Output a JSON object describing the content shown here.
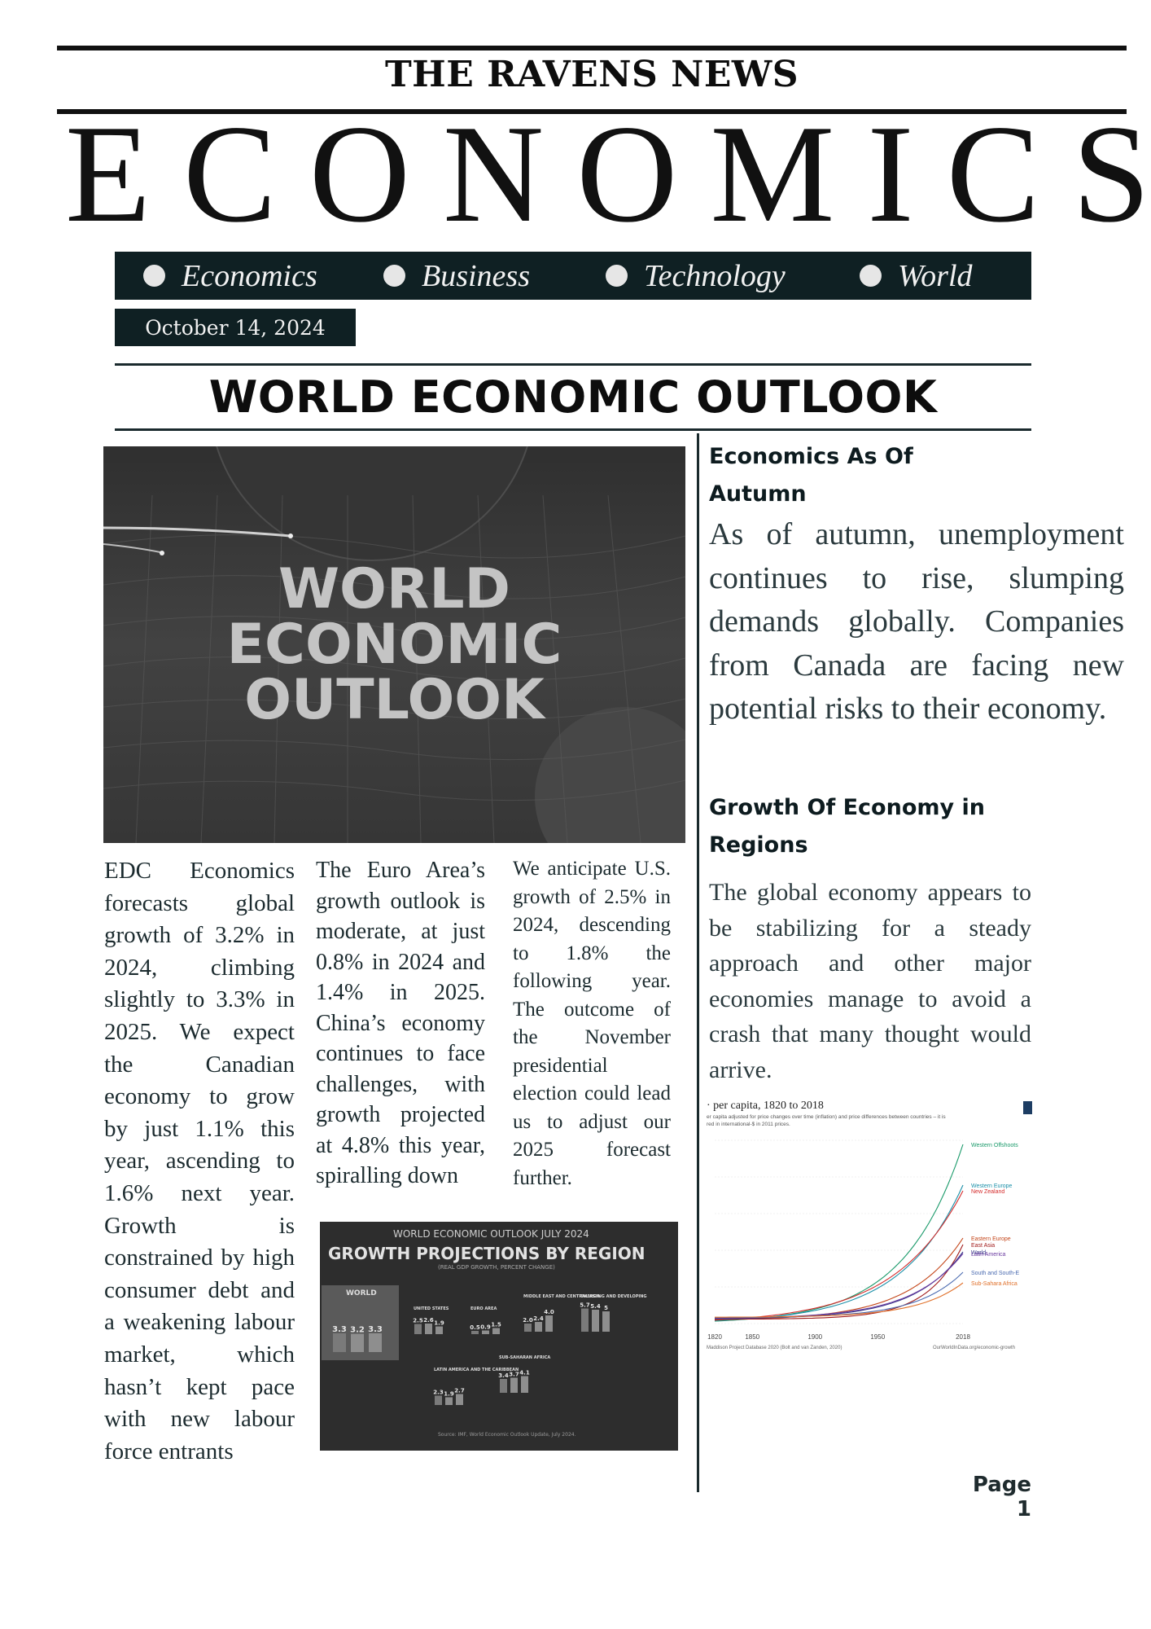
{
  "masthead": {
    "paper_name": "THE RAVENS NEWS",
    "section_title": "ECONOMICS"
  },
  "nav": {
    "items": [
      {
        "label": "Economics"
      },
      {
        "label": "Business"
      },
      {
        "label": "Technology"
      },
      {
        "label": "World"
      }
    ]
  },
  "date": "October 14, 2024",
  "headline": "WORLD ECONOMIC OUTLOOK",
  "hero_image": {
    "lines": [
      "WORLD",
      "ECONOMIC",
      "OUTLOOK"
    ]
  },
  "article": {
    "col1": "EDC Economics forecasts global growth of 3.2% in 2024, climbing slightly to 3.3% in 2025. We expect the Canadian economy to grow by just 1.1% this year, ascending to 1.6% next year. Growth is constrained by high consumer debt and a weakening labour market, which hasn’t kept pace with new labour force entrants",
    "col2": "The Euro Area’s growth outlook is moderate, at just 0.8% in 2024 and 1.4% in 2025. China’s economy continues to face challenges, with growth projected at 4.8% this year, spiralling down",
    "col3": "We anticipate U.S. growth of 2.5% in 2024, descending to 1.8% the following year. The outcome of the November presidential election could lead us to adjust our 2025 forecast further."
  },
  "growth_projections": {
    "kicker": "WORLD ECONOMIC OUTLOOK JULY 2024",
    "title": "GROWTH PROJECTIONS BY REGION",
    "subtitle": "(REAL GDP GROWTH, PERCENT CHANGE)",
    "source": "Source: IMF, World Economic Outlook Update, July 2024.",
    "regions": [
      {
        "name": "WORLD",
        "values": [
          "3.3",
          "3.2",
          "3.3"
        ]
      },
      {
        "name": "UNITED STATES",
        "values": [
          "2.5",
          "2.6",
          "1.9"
        ]
      },
      {
        "name": "EURO AREA",
        "values": [
          "0.5",
          "0.9",
          "1.5"
        ]
      },
      {
        "name": "MIDDLE EAST AND CENTRAL ASIA",
        "values": [
          "2.0",
          "2.4",
          "4.0"
        ]
      },
      {
        "name": "EMERGING AND DEVELOPING",
        "values": [
          "5.7",
          "5.4",
          "5"
        ]
      },
      {
        "name": "LATIN AMERICA AND THE CARIBBEAN",
        "values": [
          "2.3",
          "1.9",
          "2.7"
        ]
      },
      {
        "name": "SUB-SAHARAN AFRICA",
        "values": [
          "3.4",
          "3.7",
          "4.1"
        ]
      }
    ]
  },
  "sidebar": {
    "heading1_line1": "Economics As Of",
    "heading1_line2": "Autumn",
    "para1": "As of autumn, unemployment continues to rise, slumping demands globally. Companies from Canada are facing new potential risks to their economy.",
    "heading2_line1": "Growth Of Economy in",
    "heading2_line2": "Regions",
    "para2": "The global economy appears to be stabilizing for a steady approach and other major economies manage to avoid a crash that many thought would arrive."
  },
  "gdp_chart": {
    "title": "· per capita, 1820 to 2018",
    "subtitle1": "er capita adjusted for price changes over time (inflation) and price differences between countries – it is",
    "subtitle2": "red in international-$ in 2011 prices.",
    "x_ticks": [
      "1820",
      "1850",
      "1900",
      "1950",
      "2018"
    ],
    "source_left": "Maddison Project Database 2020 (Bolt and van Zanden, 2020)",
    "source_right": "OurWorldInData.org/economic-growth",
    "legend": [
      {
        "label": "Western Offshoots",
        "color": "#1a9a6a"
      },
      {
        "label": "Western Europe",
        "color": "#1a8fa8"
      },
      {
        "label": "New Zealand",
        "color": "#d42a2a"
      },
      {
        "label": "Eastern Europe",
        "color": "#c4461a"
      },
      {
        "label": "East Asia",
        "color": "#a01a1a"
      },
      {
        "label": "World",
        "color": "#3a3a8a"
      },
      {
        "label": "Latin America",
        "color": "#6a3aa0"
      },
      {
        "label": "South and South-E",
        "color": "#4a6ab0"
      },
      {
        "label": "Sub-Sahara Africa",
        "color": "#e0702a"
      }
    ]
  },
  "page_label": "Page 1"
}
